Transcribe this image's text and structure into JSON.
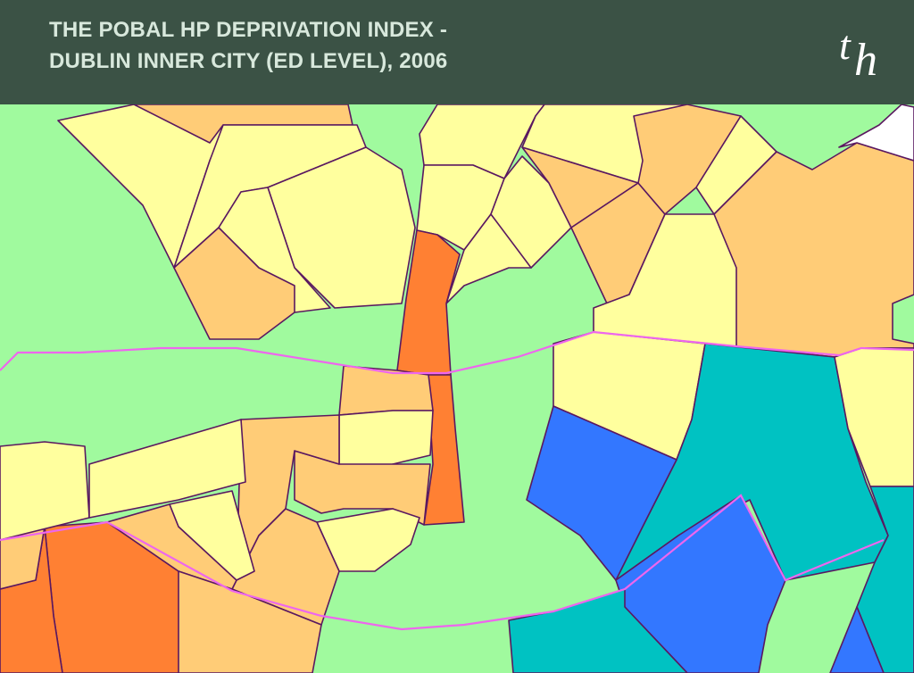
{
  "header": {
    "title_lines": [
      "THE POBAL HP DEPRIVATION INDEX -",
      "DUBLIN INNER CITY (ED LEVEL), 2006"
    ],
    "logo": [
      "t",
      "h"
    ]
  }
}
